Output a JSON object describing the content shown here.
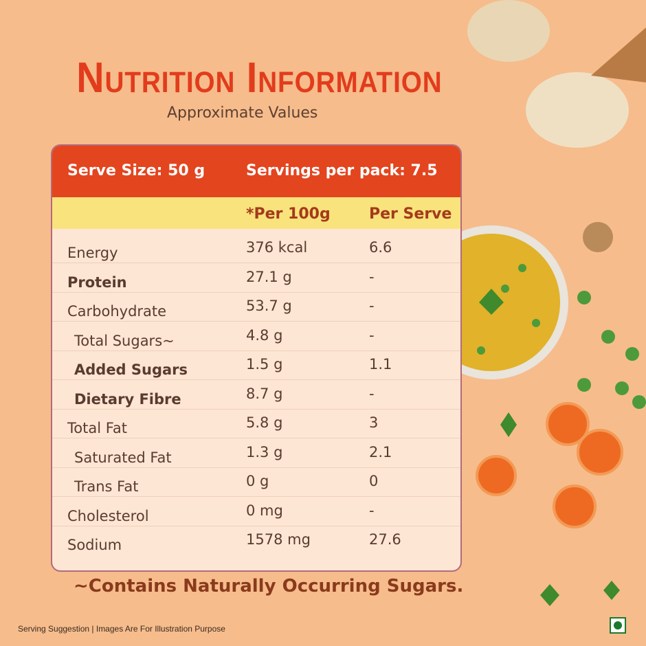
{
  "header": {
    "title": "Nutrition Information",
    "subtitle": "Approximate Values"
  },
  "table": {
    "serve_size": "Serve Size: 50 g",
    "servings": "Servings per pack: 7.5",
    "columns": [
      "*Per 100g",
      "Per Serve"
    ],
    "rows": [
      [
        "Energy",
        "376 kcal",
        "6.6"
      ],
      [
        "Protein",
        "27.1 g",
        "-"
      ],
      [
        "Carbohydrate",
        "53.7 g",
        "-"
      ],
      [
        "Total Sugars~",
        "4.8 g",
        "-"
      ],
      [
        "Added Sugars",
        "1.5 g",
        "1.1"
      ],
      [
        "Dietary Fibre",
        "8.7 g",
        "-"
      ],
      [
        "Total Fat",
        "5.8 g",
        "3"
      ],
      [
        "Saturated Fat",
        "1.3 g",
        "2.1"
      ],
      [
        "Trans Fat",
        "0 g",
        "0"
      ],
      [
        "Cholesterol",
        "0 mg",
        "-"
      ],
      [
        "Sodium",
        "1578 mg",
        "27.6"
      ]
    ]
  },
  "footnote": "~Contains Naturally Occurring Sugars.",
  "disclaimer": "Serving Suggestion | Images Are For Illustration Purpose"
}
